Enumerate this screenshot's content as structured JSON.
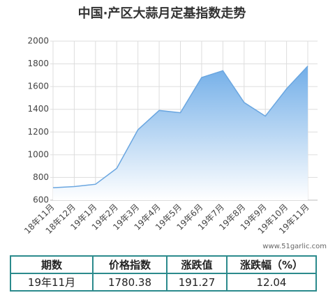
{
  "chart_data": {
    "type": "area",
    "title": "中国·产区大蒜月定基指数走势",
    "categories": [
      "18年11月",
      "18年12月",
      "19年1月",
      "19年2月",
      "19年3月",
      "19年4月",
      "19年5月",
      "19年6月",
      "19年7月",
      "19年8月",
      "19年9月",
      "19年10月",
      "19年11月"
    ],
    "series": [
      {
        "name": "定基指数",
        "color": "#6aa6e0",
        "values": [
          710,
          720,
          740,
          880,
          1220,
          1390,
          1370,
          1680,
          1740,
          1460,
          1340,
          1580,
          1780.38
        ]
      }
    ],
    "ylim": [
      600,
      2000
    ],
    "yticks": [
      600,
      800,
      1000,
      1200,
      1400,
      1600,
      1800,
      2000
    ],
    "grid": true,
    "watermark": "www.51garlic.com"
  },
  "table": {
    "header": [
      "期数",
      "价格指数",
      "涨跌值",
      "涨跌幅（%）"
    ],
    "rows": [
      [
        "19年11月",
        "1780.38",
        "191.27",
        "12.04"
      ]
    ]
  }
}
